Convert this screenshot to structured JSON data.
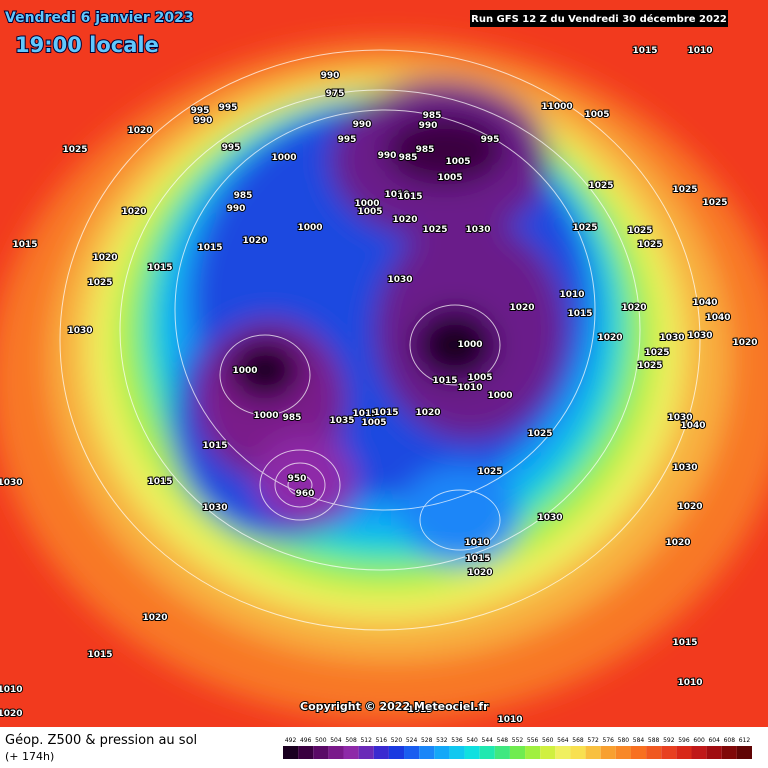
{
  "header": {
    "date": "Vendredi 6 janvier 2023",
    "time": "19:00 locale",
    "run": "Run GFS 12 Z du Vendredi 30 décembre 2022"
  },
  "footer": {
    "title": "Géop. Z500 & pression au sol",
    "subtitle": "(+ 174h)",
    "copyright": "Copyright © 2022 Meteociel.fr"
  },
  "colorbar": {
    "ticks": [
      492,
      496,
      500,
      504,
      508,
      512,
      516,
      520,
      524,
      528,
      532,
      536,
      540,
      544,
      548,
      552,
      556,
      560,
      564,
      568,
      572,
      576,
      580,
      584,
      588,
      592,
      596,
      600,
      604,
      608,
      612
    ],
    "colors": [
      "#1a0020",
      "#3a0040",
      "#5a0a66",
      "#7a1a8a",
      "#8e2aa8",
      "#6a2ab8",
      "#3a2ad0",
      "#1a3ae0",
      "#1a5ef0",
      "#1a86f8",
      "#14a8f8",
      "#10c8f0",
      "#10e0e0",
      "#20e8b0",
      "#40e880",
      "#70ec50",
      "#a0f040",
      "#d0f040",
      "#f0f060",
      "#f8e050",
      "#f8c040",
      "#f8a030",
      "#f88828",
      "#f87020",
      "#f05820",
      "#e84020",
      "#d82818",
      "#c01818",
      "#a00c10",
      "#800808",
      "#600404"
    ]
  },
  "pressure_labels": [
    1015,
    1010,
    990,
    975,
    995,
    995,
    990,
    1020,
    990,
    985,
    990,
    995,
    11000,
    1005,
    1025,
    995,
    1000,
    995,
    990,
    985,
    985,
    1005,
    1005,
    1025,
    1025,
    1025,
    985,
    990,
    1000,
    1005,
    1010,
    1015,
    1020,
    1020,
    1025,
    1030,
    1025,
    1000,
    1020,
    1015,
    1015,
    1015,
    1025,
    1020,
    1025,
    1030,
    1025,
    1030,
    1040,
    1040,
    1020,
    1030,
    1020,
    1020,
    1025,
    1025,
    1010,
    1015,
    1020,
    1030,
    1000,
    1000,
    1000,
    1020,
    1015,
    1015,
    1005,
    1010,
    1000,
    985,
    1035,
    1015,
    1005,
    1015,
    1040,
    1030,
    1015,
    1030,
    1025,
    1025,
    1030,
    1030,
    1020,
    960,
    950,
    1010,
    1015,
    1020,
    1020,
    1030,
    1020,
    1015,
    1015,
    1010,
    1010,
    1020,
    1010,
    1015
  ]
}
